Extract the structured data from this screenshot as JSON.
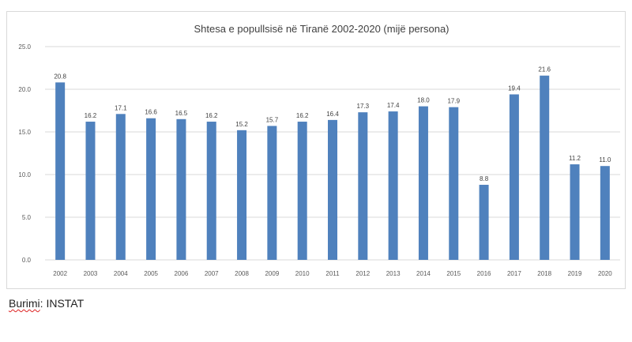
{
  "chart_data": {
    "type": "bar",
    "title": "Shtesa e popullsisë në Tiranë 2002-2020 (mijë persona)",
    "categories": [
      "2002",
      "2003",
      "2004",
      "2005",
      "2006",
      "2007",
      "2008",
      "2009",
      "2010",
      "2011",
      "2012",
      "2013",
      "2014",
      "2015",
      "2016",
      "2017",
      "2018",
      "2019",
      "2020"
    ],
    "values": [
      20.8,
      16.2,
      17.1,
      16.6,
      16.5,
      16.2,
      15.2,
      15.7,
      16.2,
      16.4,
      17.3,
      17.4,
      18.0,
      17.9,
      8.8,
      19.4,
      21.6,
      11.2,
      11.0
    ],
    "value_labels": [
      "20.8",
      "16.2",
      "17.1",
      "16.6",
      "16.5",
      "16.2",
      "15.2",
      "15.7",
      "16.2",
      "16.4",
      "17.3",
      "17.4",
      "18.0",
      "17.9",
      "8.8",
      "19.4",
      "21.6",
      "11.2",
      "11.0"
    ],
    "ylim": [
      0,
      25
    ],
    "yticks": [
      "0.0",
      "5.0",
      "10.0",
      "15.0",
      "20.0",
      "25.0"
    ],
    "grid": true,
    "legend": "none",
    "bar_color": "#4f81bd"
  },
  "source": {
    "label": "Burimi",
    "text": ": INSTAT"
  }
}
